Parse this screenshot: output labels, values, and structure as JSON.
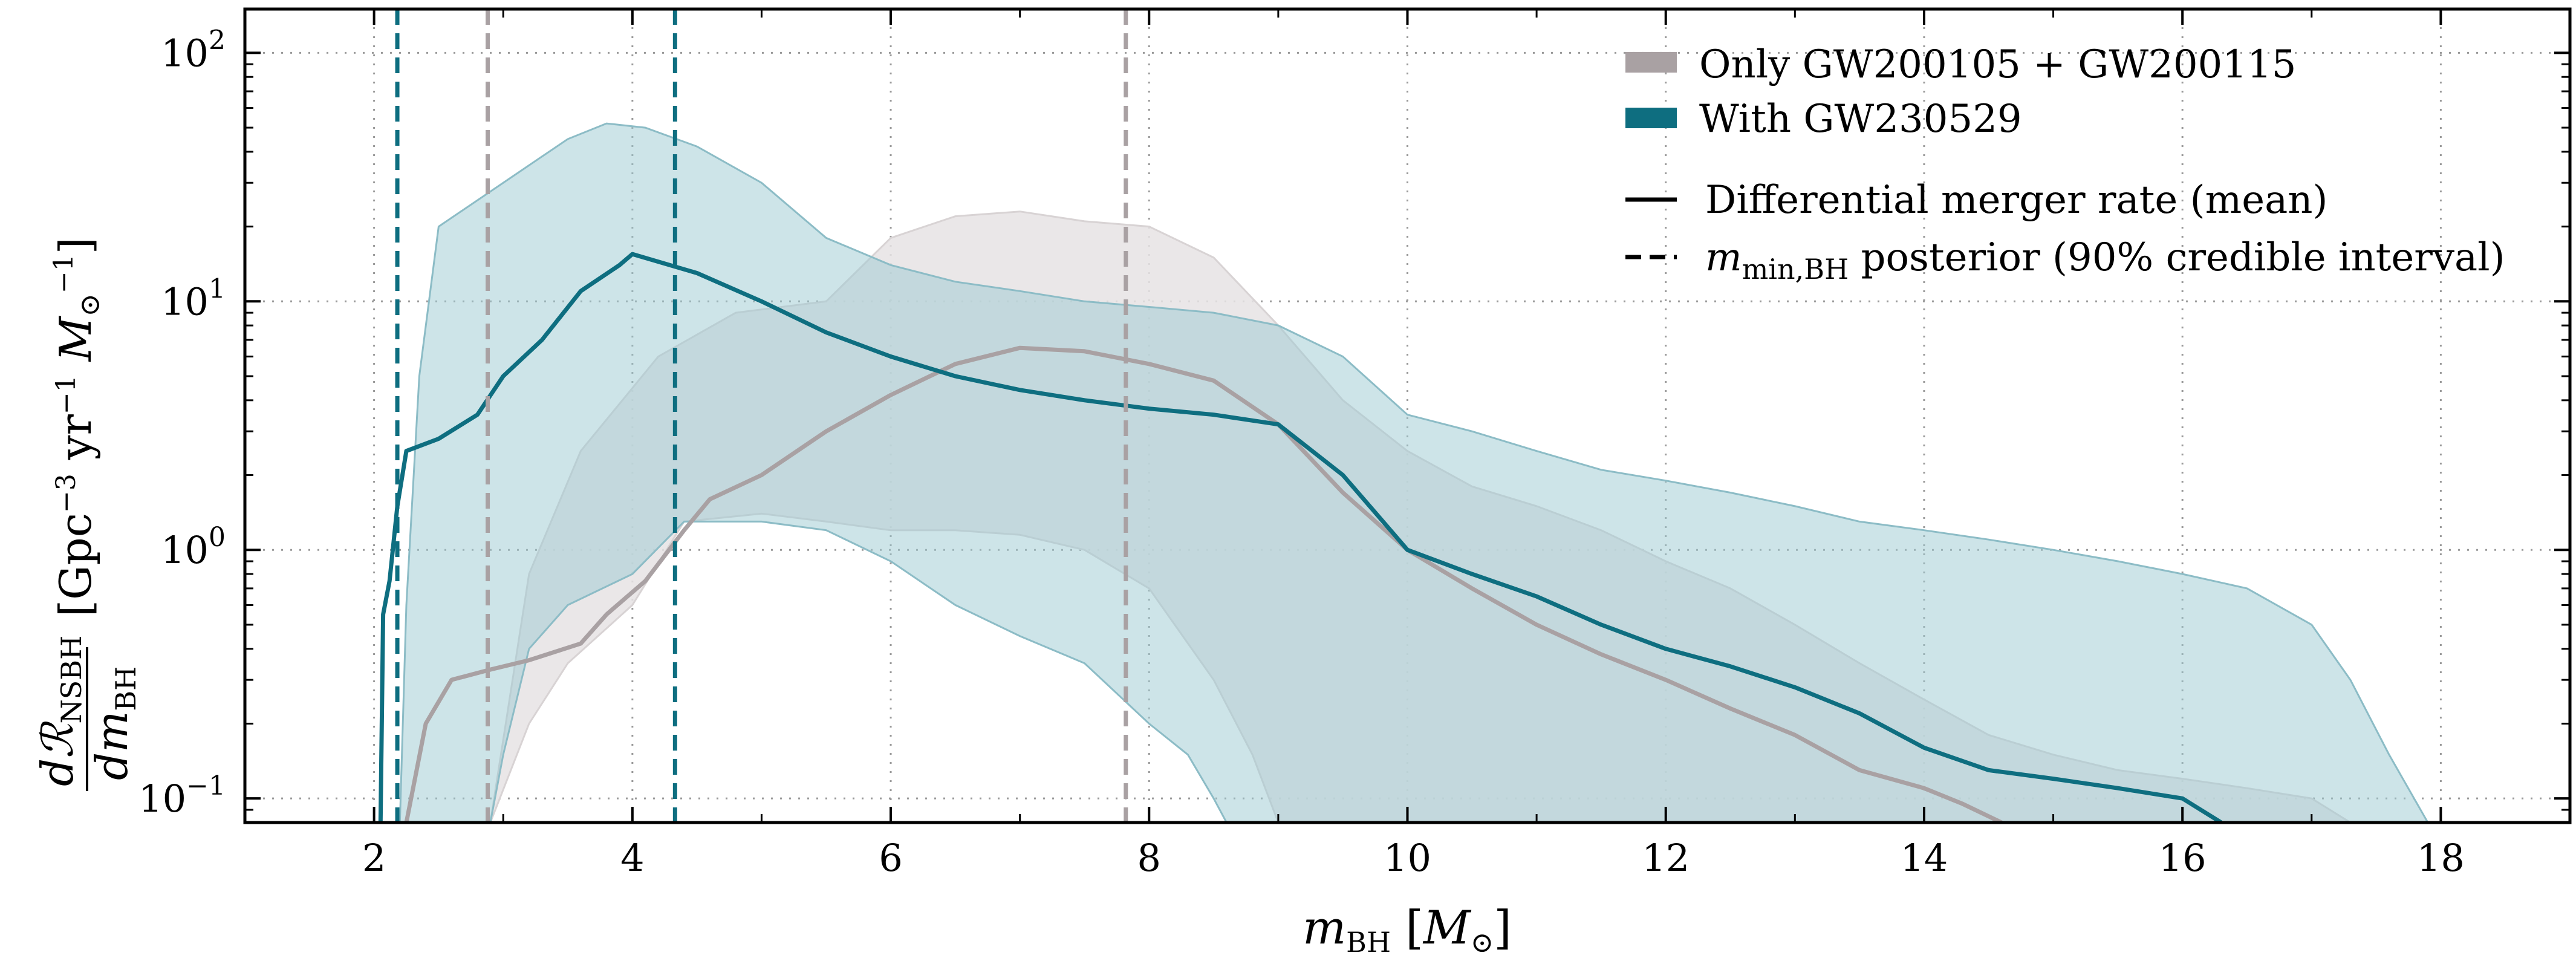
{
  "chart_data": {
    "type": "line",
    "title": "",
    "xlabel": "m_BH [M_⊙]",
    "ylabel": "dR_NSBH / dm_BH [Gpc^-3 yr^-1 M_⊙^-1]",
    "xlim": [
      1,
      19
    ],
    "ylim": [
      0.08,
      150
    ],
    "yscale": "log",
    "grid": true,
    "legend_position": "top-right",
    "x_ticks": [
      2,
      4,
      6,
      8,
      10,
      12,
      14,
      16,
      18
    ],
    "x_tick_labels": [
      "2",
      "4",
      "6",
      "8",
      "10",
      "12",
      "14",
      "16",
      "18"
    ],
    "y_ticks": [
      0.1,
      1,
      10,
      100
    ],
    "y_tick_labels": [
      {
        "base": "10",
        "exp": "−1"
      },
      {
        "base": "10",
        "exp": "0"
      },
      {
        "base": "10",
        "exp": "1"
      },
      {
        "base": "10",
        "exp": "2"
      }
    ],
    "colors": {
      "gray": "#a9a1a3",
      "gray_band": "#e6e3e4",
      "teal": "#0e6e80",
      "teal_band": "#9cc9d1"
    },
    "series": [
      {
        "name": "Only GW200105 + GW200115",
        "color": "#a9a1a3",
        "mean": [
          [
            2.25,
            0.08
          ],
          [
            2.4,
            0.2
          ],
          [
            2.6,
            0.3
          ],
          [
            2.9,
            0.33
          ],
          [
            3.2,
            0.36
          ],
          [
            3.6,
            0.42
          ],
          [
            3.8,
            0.55
          ],
          [
            4.1,
            0.75
          ],
          [
            4.4,
            1.2
          ],
          [
            4.6,
            1.6
          ],
          [
            5.0,
            2.0
          ],
          [
            5.5,
            3.0
          ],
          [
            6.0,
            4.2
          ],
          [
            6.5,
            5.6
          ],
          [
            7.0,
            6.5
          ],
          [
            7.5,
            6.3
          ],
          [
            8.0,
            5.6
          ],
          [
            8.5,
            4.8
          ],
          [
            9.0,
            3.2
          ],
          [
            9.5,
            1.7
          ],
          [
            10.0,
            1.0
          ],
          [
            10.5,
            0.7
          ],
          [
            11.0,
            0.5
          ],
          [
            11.5,
            0.38
          ],
          [
            12.0,
            0.3
          ],
          [
            12.5,
            0.23
          ],
          [
            13.0,
            0.18
          ],
          [
            13.5,
            0.13
          ],
          [
            14.0,
            0.11
          ],
          [
            14.3,
            0.095
          ],
          [
            14.6,
            0.08
          ]
        ],
        "band_lower": [
          [
            2.9,
            0.08
          ],
          [
            3.2,
            0.2
          ],
          [
            3.5,
            0.35
          ],
          [
            4.0,
            0.6
          ],
          [
            4.4,
            1.3
          ],
          [
            5.0,
            1.4
          ],
          [
            5.5,
            1.3
          ],
          [
            6.0,
            1.2
          ],
          [
            6.5,
            1.2
          ],
          [
            7.0,
            1.15
          ],
          [
            7.5,
            1.0
          ],
          [
            8.0,
            0.7
          ],
          [
            8.5,
            0.3
          ],
          [
            8.8,
            0.15
          ],
          [
            9.0,
            0.08
          ]
        ],
        "band_upper": [
          [
            2.9,
            0.08
          ],
          [
            3.2,
            0.8
          ],
          [
            3.6,
            2.5
          ],
          [
            4.2,
            6
          ],
          [
            4.8,
            9
          ],
          [
            5.5,
            10
          ],
          [
            6.0,
            18
          ],
          [
            6.5,
            22
          ],
          [
            7.0,
            23
          ],
          [
            7.5,
            21
          ],
          [
            8.0,
            20
          ],
          [
            8.5,
            15
          ],
          [
            9.0,
            8
          ],
          [
            9.5,
            4
          ],
          [
            10.0,
            2.5
          ],
          [
            10.5,
            1.8
          ],
          [
            11.0,
            1.5
          ],
          [
            11.5,
            1.2
          ],
          [
            12.0,
            0.9
          ],
          [
            12.5,
            0.7
          ],
          [
            13.0,
            0.5
          ],
          [
            13.5,
            0.35
          ],
          [
            14.0,
            0.25
          ],
          [
            14.5,
            0.18
          ],
          [
            15.0,
            0.15
          ],
          [
            15.5,
            0.13
          ],
          [
            16.0,
            0.12
          ],
          [
            16.5,
            0.11
          ],
          [
            17.0,
            0.1
          ],
          [
            17.3,
            0.08
          ]
        ]
      },
      {
        "name": "With GW230529",
        "color": "#0e6e80",
        "mean": [
          [
            2.05,
            0.08
          ],
          [
            2.07,
            0.55
          ],
          [
            2.12,
            0.75
          ],
          [
            2.18,
            1.5
          ],
          [
            2.25,
            2.5
          ],
          [
            2.5,
            2.8
          ],
          [
            2.8,
            3.5
          ],
          [
            3.0,
            5.0
          ],
          [
            3.3,
            7
          ],
          [
            3.6,
            11
          ],
          [
            3.9,
            14
          ],
          [
            4.0,
            15.5
          ],
          [
            4.5,
            13
          ],
          [
            5.0,
            10
          ],
          [
            5.5,
            7.5
          ],
          [
            6.0,
            6.0
          ],
          [
            6.5,
            5.0
          ],
          [
            7.0,
            4.4
          ],
          [
            7.5,
            4.0
          ],
          [
            8.0,
            3.7
          ],
          [
            8.5,
            3.5
          ],
          [
            9.0,
            3.2
          ],
          [
            9.5,
            2.0
          ],
          [
            10.0,
            1.0
          ],
          [
            10.5,
            0.8
          ],
          [
            11.0,
            0.65
          ],
          [
            11.5,
            0.5
          ],
          [
            12.0,
            0.4
          ],
          [
            12.5,
            0.34
          ],
          [
            13.0,
            0.28
          ],
          [
            13.5,
            0.22
          ],
          [
            14.0,
            0.16
          ],
          [
            14.5,
            0.13
          ],
          [
            15.0,
            0.12
          ],
          [
            15.5,
            0.11
          ],
          [
            16.0,
            0.1
          ],
          [
            16.3,
            0.08
          ]
        ],
        "band_lower": [
          [
            2.9,
            0.08
          ],
          [
            3.0,
            0.15
          ],
          [
            3.2,
            0.4
          ],
          [
            3.5,
            0.6
          ],
          [
            4.0,
            0.8
          ],
          [
            4.4,
            1.3
          ],
          [
            5.0,
            1.3
          ],
          [
            5.5,
            1.2
          ],
          [
            6.0,
            0.9
          ],
          [
            6.5,
            0.6
          ],
          [
            7.0,
            0.45
          ],
          [
            7.5,
            0.35
          ],
          [
            8.0,
            0.2
          ],
          [
            8.3,
            0.15
          ],
          [
            8.5,
            0.1
          ],
          [
            8.6,
            0.08
          ]
        ],
        "band_upper": [
          [
            2.2,
            0.08
          ],
          [
            2.25,
            0.6
          ],
          [
            2.35,
            5
          ],
          [
            2.5,
            20
          ],
          [
            3.0,
            30
          ],
          [
            3.5,
            45
          ],
          [
            3.8,
            52
          ],
          [
            4.1,
            50
          ],
          [
            4.5,
            42
          ],
          [
            5.0,
            30
          ],
          [
            5.5,
            18
          ],
          [
            6.0,
            14
          ],
          [
            6.5,
            12
          ],
          [
            7.0,
            11
          ],
          [
            7.5,
            10
          ],
          [
            8.0,
            9.5
          ],
          [
            8.5,
            9
          ],
          [
            9.0,
            8
          ],
          [
            9.5,
            6
          ],
          [
            10.0,
            3.5
          ],
          [
            10.5,
            3
          ],
          [
            11.0,
            2.5
          ],
          [
            11.5,
            2.1
          ],
          [
            12.0,
            1.9
          ],
          [
            12.5,
            1.7
          ],
          [
            13.0,
            1.5
          ],
          [
            13.5,
            1.3
          ],
          [
            14.0,
            1.2
          ],
          [
            14.5,
            1.1
          ],
          [
            15.0,
            1.0
          ],
          [
            15.5,
            0.9
          ],
          [
            16.0,
            0.8
          ],
          [
            16.5,
            0.7
          ],
          [
            17.0,
            0.5
          ],
          [
            17.3,
            0.3
          ],
          [
            17.6,
            0.15
          ],
          [
            17.9,
            0.08
          ]
        ]
      }
    ],
    "vlines": [
      {
        "x": 2.88,
        "series": "Only GW200105 + GW200115"
      },
      {
        "x": 7.82,
        "series": "Only GW200105 + GW200115"
      },
      {
        "x": 2.18,
        "series": "With GW230529"
      },
      {
        "x": 4.33,
        "series": "With GW230529"
      }
    ],
    "legend": {
      "patch_labels": [
        "Only GW200105 + GW200115",
        "With GW230529"
      ],
      "solid_label": "Differential merger rate (mean)",
      "dashed_label_math": "m",
      "dashed_label_sub": "min,BH",
      "dashed_label_rest": " posterior (90% credible interval)"
    },
    "axis_text": {
      "x_symbol": "m",
      "x_sub": "BH",
      "x_unit_open": " [",
      "x_unit_symbol": "M",
      "x_unit_sub": "⊙",
      "x_unit_close": "]",
      "y_num": "dℛ",
      "y_num_sub": "NSBH",
      "y_den": "dm",
      "y_den_sub": "BH",
      "y_units_a": "[Gpc",
      "y_units_a_exp": "−3",
      "y_units_b": " yr",
      "y_units_b_exp": "−1",
      "y_units_c": " M",
      "y_units_c_sub": "⊙",
      "y_units_c_exp": "−1",
      "y_units_close": "]"
    }
  }
}
